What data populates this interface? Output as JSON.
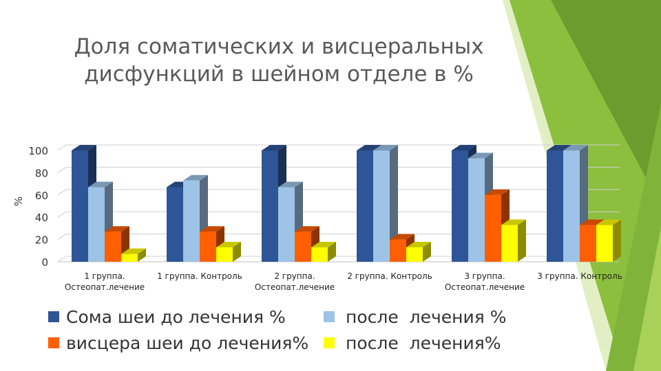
{
  "title_line1": "Доля соматических и висцеральных",
  "title_line2": "дисфункций в шейном отделе в %",
  "chart_data": {
    "type": "bar",
    "style": "3d-clustered",
    "title": "Доля соматических и висцеральных дисфункций в шейном отделе в %",
    "ylabel": "%",
    "xlabel": "",
    "ylim": [
      0,
      100
    ],
    "yticks": [
      "0",
      "20",
      "40",
      "60",
      "80",
      "100"
    ],
    "grid": true,
    "legend_position": "bottom",
    "categories": [
      [
        "1 группа.",
        "Остеопат.лечение"
      ],
      [
        "1 группа. Контроль"
      ],
      [
        "2 группа.",
        "Остеопат.лечение"
      ],
      [
        "2 группа. Контроль"
      ],
      [
        "3 группа.",
        "Остеопат.лечение"
      ],
      [
        "3 группа. Контроль"
      ]
    ],
    "series": [
      {
        "name": "Сома шеи до лечения %",
        "color": "#2E5597",
        "values": [
          100,
          67,
          100,
          100,
          100,
          100
        ]
      },
      {
        "name": "после  лечения %",
        "color": "#9DC3E6",
        "values": [
          67,
          73,
          67,
          100,
          93,
          100
        ]
      },
      {
        "name": "висцера шеи до лечения%",
        "color": "#FF5F00",
        "values": [
          27,
          27,
          27,
          20,
          60,
          33
        ]
      },
      {
        "name": "после  лечения%",
        "color": "#FFFF00",
        "values": [
          7,
          13,
          13,
          13,
          33,
          33
        ]
      }
    ]
  }
}
